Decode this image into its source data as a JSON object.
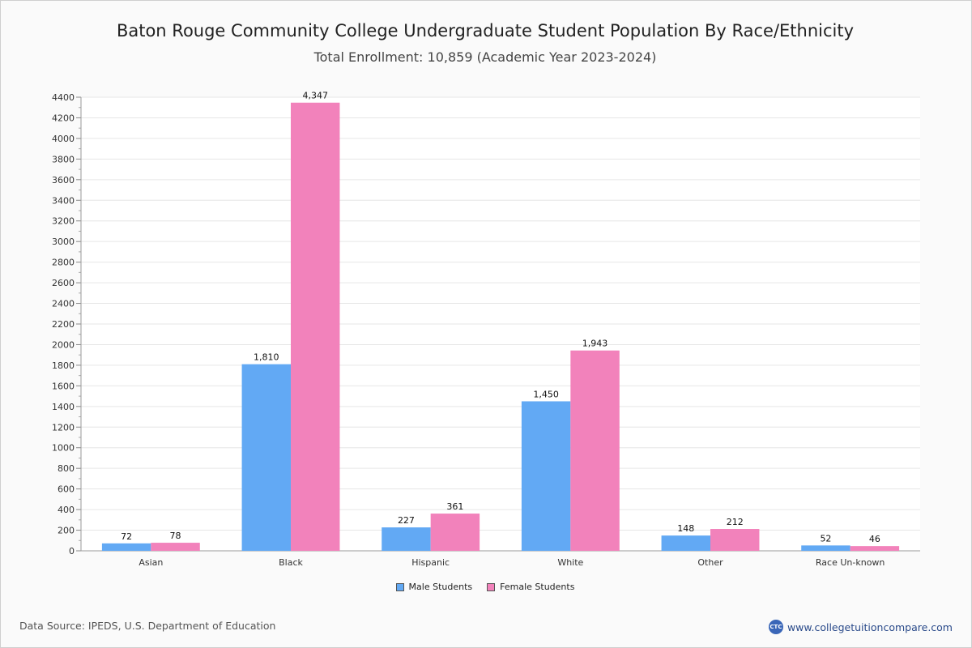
{
  "header": {
    "title": "Baton Rouge Community College Undergraduate Student Population By Race/Ethnicity",
    "subtitle": "Total Enrollment: 10,859 (Academic Year 2023-2024)"
  },
  "footer": {
    "source": "Data Source: IPEDS, U.S. Department of Education",
    "brand_logo_text": "CTC",
    "brand_url": "www.collegetuitioncompare.com"
  },
  "colors": {
    "male": "#62a9f4",
    "female": "#f282bb",
    "grid": "#e6e6e6",
    "plot_bg": "#ffffff"
  },
  "chart_data": {
    "type": "bar",
    "title": "Baton Rouge Community College Undergraduate Student Population By Race/Ethnicity",
    "subtitle": "Total Enrollment: 10,859 (Academic Year 2023-2024)",
    "categories": [
      "Asian",
      "Black",
      "Hispanic",
      "White",
      "Other",
      "Race Un-known"
    ],
    "series": [
      {
        "name": "Male Students",
        "values": [
          72,
          1810,
          227,
          1450,
          148,
          52
        ],
        "labels": [
          "72",
          "1,810",
          "227",
          "1,450",
          "148",
          "52"
        ]
      },
      {
        "name": "Female Students",
        "values": [
          78,
          4347,
          361,
          1943,
          212,
          46
        ],
        "labels": [
          "78",
          "4,347",
          "361",
          "1,943",
          "212",
          "46"
        ]
      }
    ],
    "ylim": [
      0,
      4400
    ],
    "yticks": [
      0,
      200,
      400,
      600,
      800,
      1000,
      1200,
      1400,
      1600,
      1800,
      2000,
      2200,
      2400,
      2600,
      2800,
      3000,
      3200,
      3400,
      3600,
      3800,
      4000,
      4200,
      4400
    ],
    "grid": true,
    "legend": "bottom-center"
  }
}
